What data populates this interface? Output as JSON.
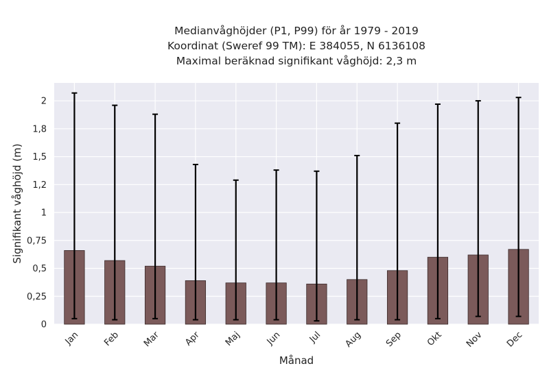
{
  "chart_data": {
    "type": "bar",
    "title_lines": [
      "Medianvåghöjder (P1, P99) för år 1979 - 2019",
      "Koordinat (Sweref 99 TM): E 384055, N 6136108",
      "Maximal beräknad signifikant våghöjd: 2,3 m"
    ],
    "xlabel": "Månad",
    "ylabel": "Signifikant våghöjd (m)",
    "categories": [
      "Jan",
      "Feb",
      "Mar",
      "Apr",
      "Maj",
      "Jun",
      "Jul",
      "Aug",
      "Sep",
      "Okt",
      "Nov",
      "Dec"
    ],
    "series": [
      {
        "values": [
          0.66,
          0.57,
          0.52,
          0.39,
          0.37,
          0.37,
          0.36,
          0.4,
          0.48,
          0.6,
          0.62,
          0.67
        ],
        "err_low": [
          0.05,
          0.04,
          0.05,
          0.04,
          0.04,
          0.04,
          0.03,
          0.04,
          0.04,
          0.05,
          0.07,
          0.07
        ],
        "err_high": [
          2.07,
          1.96,
          1.88,
          1.43,
          1.29,
          1.38,
          1.37,
          1.51,
          1.8,
          1.97,
          2.0,
          2.03
        ]
      }
    ],
    "ylim": [
      0,
      2.16
    ],
    "yticks": [
      0,
      0.25,
      0.5,
      0.75,
      1,
      1.25,
      1.5,
      1.75,
      2
    ],
    "ytick_labels": [
      "0",
      "0,25",
      "0,5",
      "0,75",
      "1",
      "1,2",
      "1,5",
      "1,8",
      "2"
    ],
    "grid": true,
    "colors": {
      "bar": "#7b5a5a",
      "bar_edge": "#3a2a2a",
      "error": "#000000",
      "background": "#eaeaf2",
      "grid": "#ffffff"
    }
  }
}
